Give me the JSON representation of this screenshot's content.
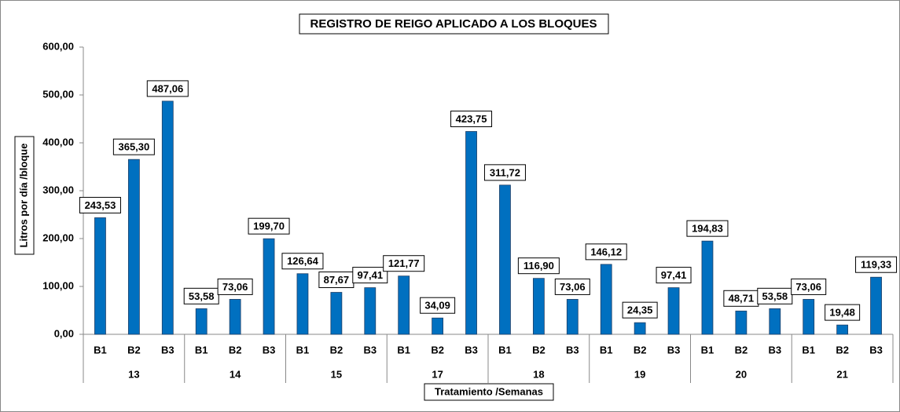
{
  "chart_data": {
    "type": "bar",
    "title": "REGISTRO DE REIGO APLICADO A LOS BLOQUES",
    "y_label": "Litros por día /bloque",
    "x_label": "Tratamiento /Semanas",
    "groups": [
      "13",
      "14",
      "15",
      "17",
      "18",
      "19",
      "20",
      "21"
    ],
    "categories": [
      "B1",
      "B2",
      "B3",
      "B1",
      "B2",
      "B3",
      "B1",
      "B2",
      "B3",
      "B1",
      "B2",
      "B3",
      "B1",
      "B2",
      "B3",
      "B1",
      "B2",
      "B3",
      "B1",
      "B2",
      "B3",
      "B1",
      "B2",
      "B3"
    ],
    "values": [
      243.53,
      365.3,
      487.06,
      53.58,
      73.06,
      199.7,
      126.64,
      87.67,
      97.41,
      121.77,
      34.09,
      423.75,
      311.72,
      116.9,
      73.06,
      146.12,
      24.35,
      97.41,
      194.83,
      48.71,
      53.58,
      73.06,
      19.48,
      119.33
    ],
    "value_labels": [
      "243,53",
      "365,30",
      "487,06",
      "53,58",
      "73,06",
      "199,70",
      "126,64",
      "87,67",
      "97,41",
      "121,77",
      "34,09",
      "423,75",
      "311,72",
      "116,90",
      "73,06",
      "146,12",
      "24,35",
      "97,41",
      "194,83",
      "48,71",
      "53,58",
      "73,06",
      "19,48",
      "119,33"
    ],
    "color": "#0070c0",
    "ylim": [
      0,
      600
    ],
    "yticks": [
      {
        "value": 0,
        "label": "0,00"
      },
      {
        "value": 100,
        "label": "100,00"
      },
      {
        "value": 200,
        "label": "200,00"
      },
      {
        "value": 300,
        "label": "300,00"
      },
      {
        "value": 400,
        "label": "400,00"
      },
      {
        "value": 500,
        "label": "500,00"
      },
      {
        "value": 600,
        "label": "600,00"
      }
    ],
    "grid": false
  }
}
